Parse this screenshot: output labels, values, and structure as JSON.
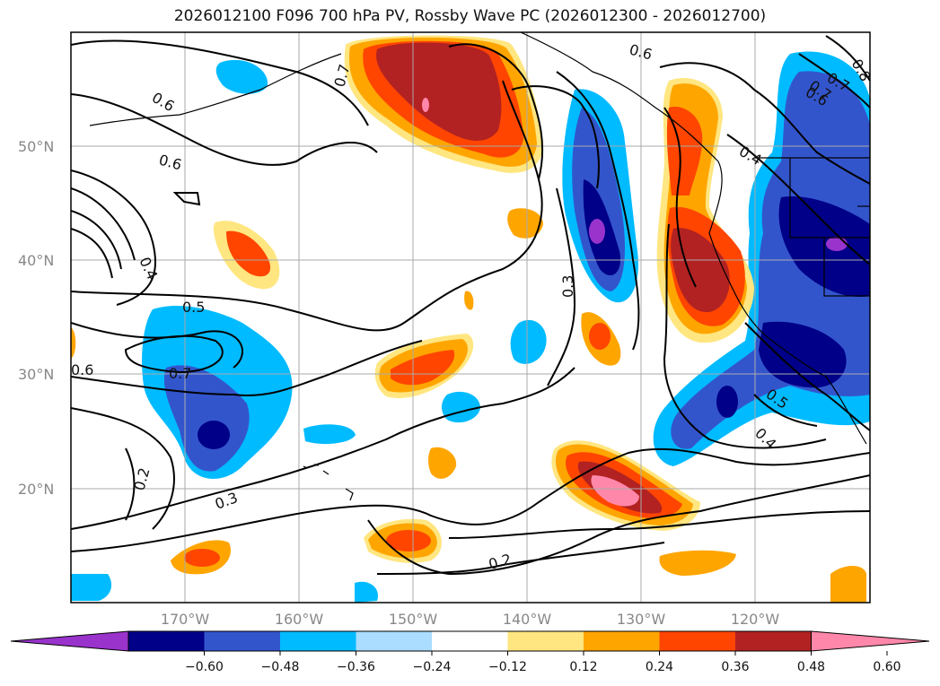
{
  "title": "2026012100 F096 700 hPa PV, Rossby Wave PC (2026012300 - 2026012700)",
  "map": {
    "lat_labels": [
      "50°N",
      "40°N",
      "30°N",
      "20°N"
    ],
    "lon_labels": [
      "170°W",
      "160°W",
      "150°W",
      "140°W",
      "130°W",
      "120°W"
    ],
    "contour_labels": [
      "0.6",
      "0.6",
      "0.7",
      "0.6",
      "0.4",
      "0.5",
      "0.7",
      "0.6",
      "0.3",
      "0.2",
      "0.3",
      "0.2",
      "0.7",
      "0.4",
      "0.5",
      "0.4",
      "0.6",
      "0.7",
      "0.8"
    ]
  },
  "colorbar": {
    "ticks": [
      "−0.60",
      "−0.48",
      "−0.36",
      "−0.24",
      "−0.12",
      "0.12",
      "0.24",
      "0.36",
      "0.48",
      "0.60"
    ],
    "colors": [
      "#9933cc",
      "#000088",
      "#3355cc",
      "#00bbff",
      "#aaddff",
      "#ffffff",
      "#ffe680",
      "#ffa500",
      "#ff4500",
      "#b22222",
      "#ff88aa"
    ]
  }
}
